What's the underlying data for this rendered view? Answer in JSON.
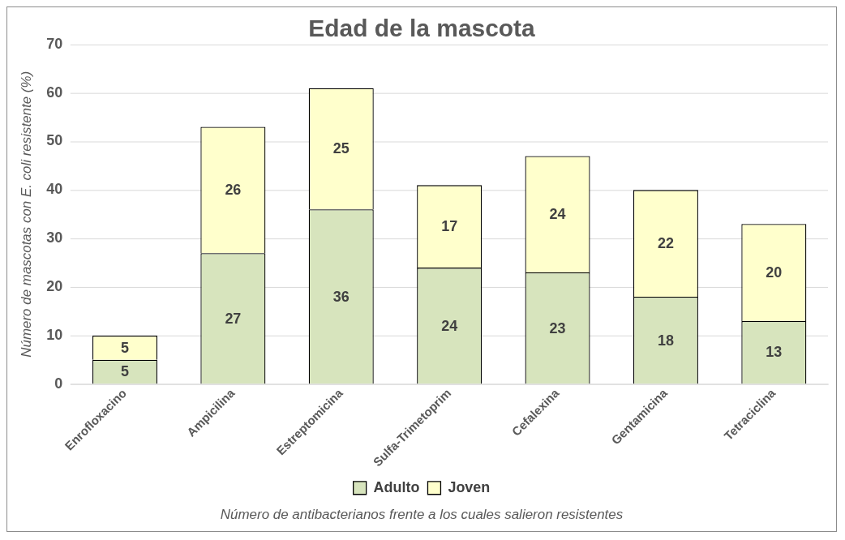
{
  "chart_data": {
    "type": "bar",
    "title": "Edad de la mascota",
    "xlabel": "Número de antibacterianos frente a los cuales salieron resistentes",
    "ylabel": "Número de mascotas con E. coli resistente (%)",
    "categories": [
      "Enrofloxacino",
      "Ampicilina",
      "Estreptomicina",
      "Sulfa-Trimetoprim",
      "Cefalexina",
      "Gentamicina",
      "Tetraciclina"
    ],
    "series": [
      {
        "name": "Adulto",
        "color": "#d7e4bd",
        "values": [
          5,
          27,
          36,
          24,
          23,
          18,
          13
        ]
      },
      {
        "name": "Joven",
        "color": "#ffffcc",
        "values": [
          5,
          26,
          25,
          17,
          24,
          22,
          20
        ]
      }
    ],
    "stacked": true,
    "ylim": [
      0,
      70
    ],
    "yticks": [
      0,
      10,
      20,
      30,
      40,
      50,
      60,
      70
    ],
    "grid": "y",
    "legend": "bottom",
    "data_labels": true
  }
}
